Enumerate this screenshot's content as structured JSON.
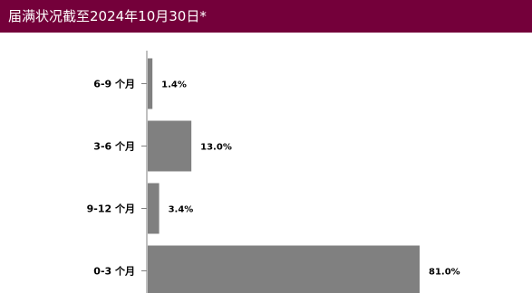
{
  "chart_data": {
    "type": "bar",
    "orientation": "horizontal",
    "title": "届满状况截至2024年10月30日*",
    "categories": [
      "6-9 个月",
      "3-6 个月",
      "9-12 个月",
      "0-3 个月"
    ],
    "values": [
      1.4,
      13.0,
      3.4,
      81.0
    ],
    "value_labels": [
      "1.4%",
      "13.0%",
      "3.4%",
      "81.0%"
    ],
    "xlim": [
      0,
      100
    ],
    "grid": false,
    "legend": "none",
    "colors": {
      "bar": "#808080",
      "title_background": "#74003a",
      "title_text": "#ffffff",
      "axis": "#808080"
    }
  }
}
